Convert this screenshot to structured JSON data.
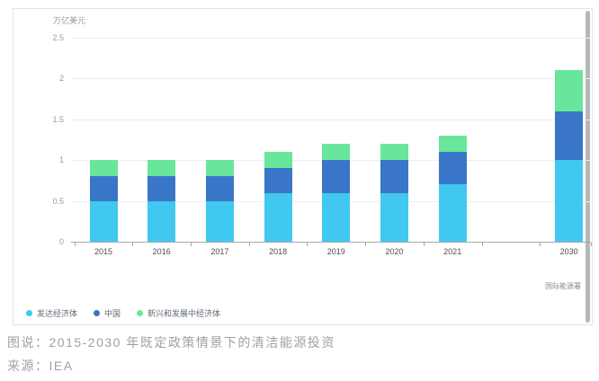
{
  "card": {
    "attribution": "国际能源署"
  },
  "chart_data": {
    "type": "bar",
    "stacked": true,
    "unit_label": "万亿美元",
    "categories": [
      "2015",
      "2016",
      "2017",
      "2018",
      "2019",
      "2020",
      "2021",
      "2030"
    ],
    "category_slots": [
      0,
      1,
      2,
      3,
      4,
      5,
      6,
      8
    ],
    "series": [
      {
        "name": "发达经济体",
        "color": "#41c8f0",
        "values": [
          0.5,
          0.5,
          0.5,
          0.6,
          0.6,
          0.6,
          0.7,
          1.0
        ]
      },
      {
        "name": "中国",
        "color": "#3a76c8",
        "values": [
          0.3,
          0.3,
          0.3,
          0.3,
          0.4,
          0.4,
          0.4,
          0.6
        ]
      },
      {
        "name": "新兴和发展中经济体",
        "color": "#69e69b",
        "values": [
          0.2,
          0.2,
          0.2,
          0.2,
          0.2,
          0.2,
          0.2,
          0.5
        ]
      }
    ],
    "totals": [
      1.0,
      1.0,
      1.0,
      1.1,
      1.2,
      1.2,
      1.3,
      2.1
    ],
    "ylim": [
      0,
      2.5
    ],
    "yticks": [
      0,
      0.5,
      1,
      1.5,
      2,
      2.5
    ],
    "ytick_labels": [
      "0",
      "0.5",
      "1",
      "1.5",
      "2",
      "2.5"
    ],
    "grid": true,
    "legend_position": "bottom-left"
  },
  "caption": {
    "figure_caption": "图说：2015-2030 年既定政策情景下的清洁能源投资",
    "source": "来源：IEA"
  }
}
